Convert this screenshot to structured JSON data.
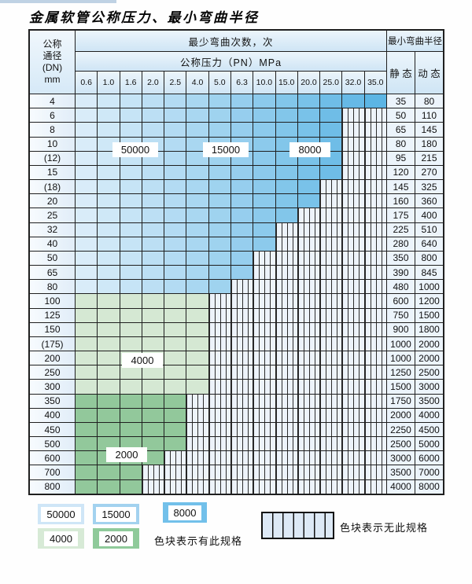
{
  "title": "金属软管公称压力、最小弯曲半径",
  "table": {
    "header": {
      "dn_label_lines": [
        "公称",
        "通径",
        "(DN)",
        "mm"
      ],
      "bend_cycles_label": "最少弯曲次数，次",
      "bend_radius_label": "最小弯曲半径",
      "pressure_label": "公称压力（PN）MPa",
      "static_label": "静 态",
      "dynamic_label": "动 态",
      "pressure_columns": [
        "0.6",
        "1.0",
        "1.6",
        "2.0",
        "2.5",
        "4.0",
        "5.0",
        "6.3",
        "10.0",
        "15.0",
        "20.0",
        "25.0",
        "32.0",
        "35.0"
      ]
    },
    "rows": [
      {
        "dn": "4",
        "available_cols": 14,
        "zone": "blue",
        "static": "35",
        "dynamic": "80"
      },
      {
        "dn": "6",
        "available_cols": 12,
        "zone": "blue",
        "static": "50",
        "dynamic": "110"
      },
      {
        "dn": "8",
        "available_cols": 12,
        "zone": "blue",
        "static": "65",
        "dynamic": "145"
      },
      {
        "dn": "10",
        "available_cols": 12,
        "zone": "blue",
        "static": "80",
        "dynamic": "180"
      },
      {
        "dn": "(12)",
        "available_cols": 12,
        "zone": "blue",
        "static": "95",
        "dynamic": "215"
      },
      {
        "dn": "15",
        "available_cols": 12,
        "zone": "blue",
        "static": "120",
        "dynamic": "270"
      },
      {
        "dn": "(18)",
        "available_cols": 11,
        "zone": "blue",
        "static": "145",
        "dynamic": "325"
      },
      {
        "dn": "20",
        "available_cols": 11,
        "zone": "blue",
        "static": "160",
        "dynamic": "360"
      },
      {
        "dn": "25",
        "available_cols": 10,
        "zone": "blue",
        "static": "175",
        "dynamic": "400"
      },
      {
        "dn": "32",
        "available_cols": 9,
        "zone": "blue",
        "static": "225",
        "dynamic": "510"
      },
      {
        "dn": "40",
        "available_cols": 9,
        "zone": "blue",
        "static": "280",
        "dynamic": "640"
      },
      {
        "dn": "50",
        "available_cols": 8,
        "zone": "blue",
        "static": "350",
        "dynamic": "800"
      },
      {
        "dn": "65",
        "available_cols": 8,
        "zone": "blue",
        "static": "390",
        "dynamic": "845"
      },
      {
        "dn": "80",
        "available_cols": 7,
        "zone": "blue",
        "static": "480",
        "dynamic": "1000"
      },
      {
        "dn": "100",
        "available_cols": 6,
        "zone": "green_4000",
        "static": "600",
        "dynamic": "1200"
      },
      {
        "dn": "125",
        "available_cols": 6,
        "zone": "green_4000",
        "static": "750",
        "dynamic": "1500"
      },
      {
        "dn": "150",
        "available_cols": 6,
        "zone": "green_4000",
        "static": "900",
        "dynamic": "1800"
      },
      {
        "dn": "(175)",
        "available_cols": 6,
        "zone": "green_4000",
        "static": "1000",
        "dynamic": "2000"
      },
      {
        "dn": "200",
        "available_cols": 6,
        "zone": "green_4000",
        "static": "1000",
        "dynamic": "2000"
      },
      {
        "dn": "250",
        "available_cols": 6,
        "zone": "green_4000",
        "static": "1250",
        "dynamic": "2500"
      },
      {
        "dn": "300",
        "available_cols": 6,
        "zone": "green_4000",
        "static": "1500",
        "dynamic": "3000"
      },
      {
        "dn": "350",
        "available_cols": 5,
        "zone": "green_2000",
        "static": "1750",
        "dynamic": "3500"
      },
      {
        "dn": "400",
        "available_cols": 5,
        "zone": "green_2000",
        "static": "2000",
        "dynamic": "4000"
      },
      {
        "dn": "450",
        "available_cols": 5,
        "zone": "green_2000",
        "static": "2250",
        "dynamic": "4500"
      },
      {
        "dn": "500",
        "available_cols": 5,
        "zone": "green_2000",
        "static": "2500",
        "dynamic": "5000"
      },
      {
        "dn": "600",
        "available_cols": 4,
        "zone": "green_2000",
        "static": "3000",
        "dynamic": "6000"
      },
      {
        "dn": "700",
        "available_cols": 3,
        "zone": "green_2000",
        "static": "3500",
        "dynamic": "7000"
      },
      {
        "dn": "800",
        "available_cols": 3,
        "zone": "green_2000",
        "static": "4000",
        "dynamic": "8000"
      }
    ]
  },
  "overlay_labels": [
    {
      "id": "label-50000",
      "text": "50000"
    },
    {
      "id": "label-15000",
      "text": "15000"
    },
    {
      "id": "label-8000",
      "text": "8000"
    },
    {
      "id": "label-4000",
      "text": "4000"
    },
    {
      "id": "label-2000",
      "text": "2000"
    }
  ],
  "legend": {
    "items": [
      {
        "label": "50000",
        "color": "#cfe6f7"
      },
      {
        "label": "15000",
        "color": "#a3d2ef"
      },
      {
        "label": "8000",
        "color": "#72c0ea"
      },
      {
        "label": "4000",
        "color": "#d7ead6"
      },
      {
        "label": "2000",
        "color": "#8fca9a"
      }
    ],
    "has_spec_text": "色块表示有此规格",
    "no_spec_text": "色块表示无此规格"
  },
  "colors": {
    "blue_start": "#d9ecf9",
    "blue_end": "#5cb5e4",
    "green_4000": "#d5e8d3",
    "green_2000": "#92c89b",
    "stripe_bg": "#edf3fa",
    "grid": "#1f1f1f"
  }
}
